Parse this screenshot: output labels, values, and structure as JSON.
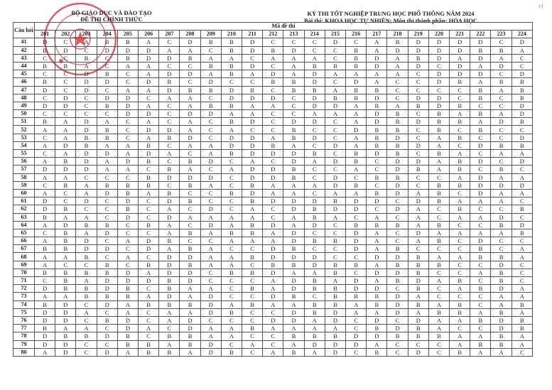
{
  "header": {
    "ministry": "BỘ GIÁO DỤC VÀ ĐÀO TẠO",
    "official": "ĐỀ THI CHÍNH THỨC",
    "exam_title": "KỲ THI TỐT NGHIỆP TRUNG HỌC PHỔ THÔNG NĂM 2024",
    "subject_line": "Bài thi:  KHOA HỌC TỰ NHIÊN; Môn thi thành phần: HÓA HỌC",
    "corner_mark": "H"
  },
  "table": {
    "question_header": "Câu hỏi",
    "code_header": "Mã đề thi",
    "codes": [
      "201",
      "202",
      "203",
      "204",
      "205",
      "206",
      "207",
      "208",
      "209",
      "210",
      "211",
      "212",
      "213",
      "214",
      "215",
      "216",
      "217",
      "218",
      "219",
      "220",
      "221",
      "222",
      "223",
      "224"
    ],
    "rows": [
      {
        "q": "41",
        "a": "DCABBACDBBDCCCDCABDDDDCD"
      },
      {
        "q": "42",
        "a": "BDCDDDAACBDBDCCBADDDDBBA"
      },
      {
        "q": "43",
        "a": "CCBCBDDBAACAAACBDABDADAC"
      },
      {
        "q": "44",
        "a": "BBACAACCBBDCABBBDADCDADC"
      },
      {
        "q": "45",
        "a": "CCDBCADDABADADAAAACDDDCD"
      },
      {
        "q": "46",
        "a": "BCDDCDBCDCCBBDCDACCDBABB"
      },
      {
        "q": "47",
        "a": "DCDCAADBBDBCBBABBCCCCBAB"
      },
      {
        "q": "48",
        "a": "CDCDDCAACDDDCDBBDCDDCBCB"
      },
      {
        "q": "49",
        "a": "DDCBDACABBAACDDABABDBCCD"
      },
      {
        "q": "50",
        "a": "CCCCDDCDDAACCAAADBCBABAD"
      },
      {
        "q": "51",
        "a": "BADACACACBDCDDCADBDBBADB"
      },
      {
        "q": "52",
        "a": "AADBCDDACACCBCCDBBCBCBCC"
      },
      {
        "q": "53",
        "a": "CABBCABDCDDABDCABDCABCCD"
      },
      {
        "q": "54",
        "a": "ADBAABCAADDBACDABBDACDBB"
      },
      {
        "q": "55",
        "a": "CADDADACABDDDBCBDBCBACAA"
      },
      {
        "q": "56",
        "a": "ABDADBCBDCACDADBCDDABDCD"
      },
      {
        "q": "57",
        "a": "DDDAACBACADDBCCACDBABCBC"
      },
      {
        "q": "58",
        "a": "AACCCBDDDCDDBCDCBBCCADAA"
      },
      {
        "q": "59",
        "a": "CBABBBCBACBAAADBCDCBBDDD"
      },
      {
        "q": "60",
        "a": "ACADBABCCBDAACAABDABCDAA"
      },
      {
        "q": "61",
        "a": "DCDCDCDBCCBDDDBDDCDBAAAC"
      },
      {
        "q": "62",
        "a": "DBCCBCACDCACDBDDCDACBCCB"
      },
      {
        "q": "63",
        "a": "BAACDCDAAAACABACACACAADC"
      },
      {
        "q": "64",
        "a": "ADBBCBACDABDADCBBBABCCBD"
      },
      {
        "q": "65",
        "a": "CBADCCABABBADCCDACDAAAAB"
      },
      {
        "q": "66",
        "a": "ABDCADBCCAAADBBDACABCDCC"
      },
      {
        "q": "67",
        "a": "BBDDCDABACCDBCCDABCCCBCA"
      },
      {
        "q": "68",
        "a": "AABCACDDAABDDDCCDDBAABBA"
      },
      {
        "q": "69",
        "a": "ACCBCBDBAACBBDBBABBBCCDC"
      },
      {
        "q": "70",
        "a": "BBBBDADDCBBDAABCDDBCCABC"
      },
      {
        "q": "71",
        "a": "CBADDDBDCCCADBADABDABCBC"
      },
      {
        "q": "72",
        "a": "DBBDBCBAACBADBBDDCBCABDA"
      },
      {
        "q": "73",
        "a": "AABBBADADCCDBCBBBDACCCAA"
      },
      {
        "q": "74",
        "a": "BDCDABBBDABAABBABDBABCAB"
      },
      {
        "q": "75",
        "a": "DDACACAADBCCDBDAADABBABA"
      },
      {
        "q": "76",
        "a": "DDCBDCADCCCDDADCDCDAABDB"
      },
      {
        "q": "77",
        "a": "BAACDACDAABAAAACBDBACCDB"
      },
      {
        "q": "78",
        "a": "DBBDBCBBAACCBBBDDBBBAABA"
      },
      {
        "q": "79",
        "a": "DDCCBBABDCACADDDACCCABBA"
      },
      {
        "q": "80",
        "a": "ADCDABBADBCABADCBCDCBAAC"
      }
    ]
  },
  "colors": {
    "stamp": "#d8262b",
    "border": "#555555"
  }
}
